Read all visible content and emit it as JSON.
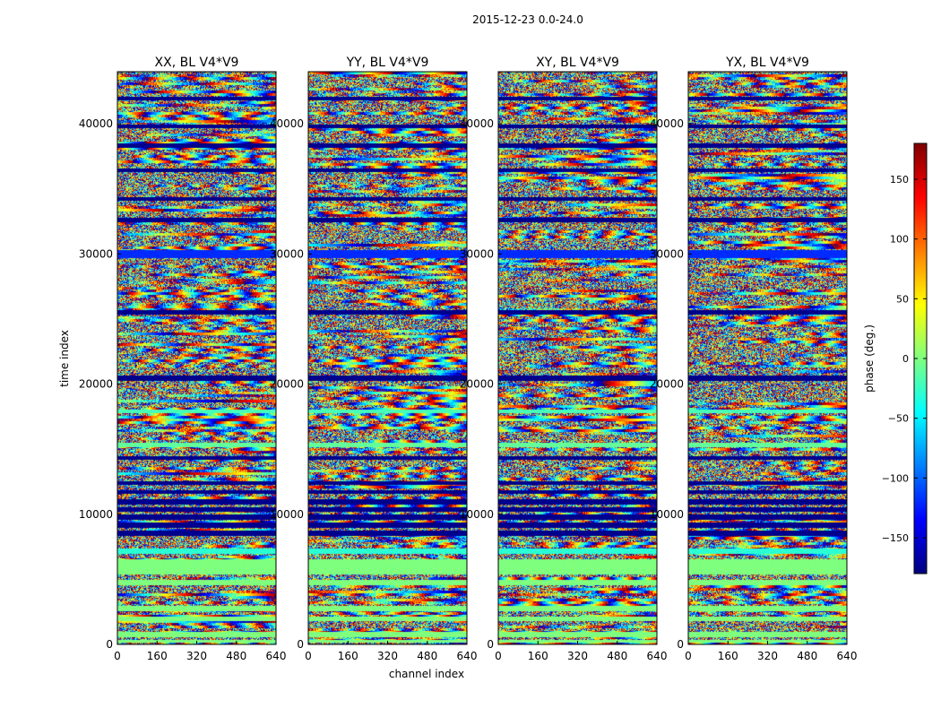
{
  "chart_data": {
    "type": "heatmap",
    "suptitle": "2015-12-23 0.0-24.0",
    "xlabel": "channel index",
    "ylabel": "time index",
    "x_range": [
      0,
      640
    ],
    "y_range": [
      0,
      44000
    ],
    "x_ticks": [
      "0",
      "160",
      "320",
      "480",
      "640"
    ],
    "x_tick_values": [
      0,
      160,
      320,
      480,
      640
    ],
    "y_ticks": [
      "0",
      "10000",
      "20000",
      "30000",
      "40000"
    ],
    "y_tick_values": [
      0,
      10000,
      20000,
      30000,
      40000
    ],
    "panels": [
      {
        "title": "XX, BL V4*V9"
      },
      {
        "title": "YY, BL V4*V9"
      },
      {
        "title": "XY, BL V4*V9"
      },
      {
        "title": "YX, BL V4*V9"
      }
    ],
    "colorbar": {
      "label": "phase (deg.)",
      "range": [
        -180,
        180
      ],
      "ticks": [
        "150",
        "100",
        "50",
        "0",
        "−50",
        "−100",
        "−150"
      ],
      "tick_values": [
        150,
        100,
        50,
        0,
        -50,
        -100,
        -150
      ],
      "colormap": [
        "#00007f",
        "#0000ff",
        "#007fff",
        "#00ffff",
        "#7fff7f",
        "#ffff00",
        "#ff7f00",
        "#ff0000",
        "#7f0000"
      ]
    },
    "uniform_bands": [
      {
        "from": 200,
        "to": 400,
        "value": 0
      },
      {
        "from": 600,
        "to": 1000,
        "value": 0
      },
      {
        "from": 1800,
        "to": 2200,
        "value": 0
      },
      {
        "from": 2600,
        "to": 3000,
        "value": 0
      },
      {
        "from": 4600,
        "to": 5000,
        "value": 0
      },
      {
        "from": 5400,
        "to": 6600,
        "value": 0
      },
      {
        "from": 7000,
        "to": 7400,
        "value": -30
      },
      {
        "from": 8400,
        "to": 8800,
        "value": -175
      },
      {
        "from": 9000,
        "to": 9400,
        "value": -175
      },
      {
        "from": 9600,
        "to": 10000,
        "value": -175
      },
      {
        "from": 10200,
        "to": 10600,
        "value": -175
      },
      {
        "from": 10800,
        "to": 11200,
        "value": -175
      },
      {
        "from": 11600,
        "to": 11900,
        "value": -175
      },
      {
        "from": 12300,
        "to": 12600,
        "value": -175
      },
      {
        "from": 14200,
        "to": 14500,
        "value": -175
      },
      {
        "from": 15200,
        "to": 15500,
        "value": -10
      },
      {
        "from": 17800,
        "to": 18100,
        "value": -20
      },
      {
        "from": 20300,
        "to": 20700,
        "value": -175
      },
      {
        "from": 25400,
        "to": 25700,
        "value": -175
      },
      {
        "from": 29700,
        "to": 30300,
        "value": -120
      },
      {
        "from": 32500,
        "to": 32800,
        "value": -175
      },
      {
        "from": 34100,
        "to": 34400,
        "value": -175
      },
      {
        "from": 36300,
        "to": 36600,
        "value": -175
      },
      {
        "from": 38200,
        "to": 38500,
        "value": -175
      },
      {
        "from": 39700,
        "to": 40000,
        "value": -175
      },
      {
        "from": 41800,
        "to": 42100,
        "value": -175
      }
    ]
  }
}
